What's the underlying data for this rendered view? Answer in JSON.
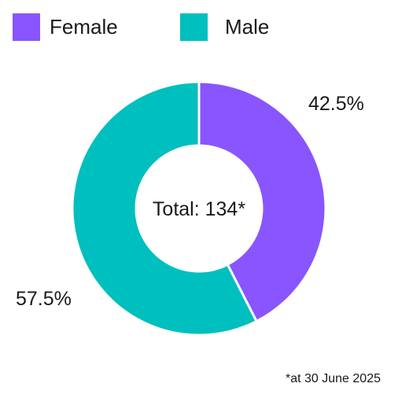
{
  "chart_data": {
    "type": "pie",
    "variant": "donut",
    "categories": [
      "Female",
      "Male"
    ],
    "values": [
      42.5,
      57.5
    ],
    "unit": "%",
    "data_labels": [
      "42.5%",
      "57.5%"
    ],
    "colors": [
      "#8855ff",
      "#00bfbf"
    ],
    "center_label": "Total: 134*",
    "legend_position": "top",
    "footnote": "*at 30 June 2025"
  }
}
